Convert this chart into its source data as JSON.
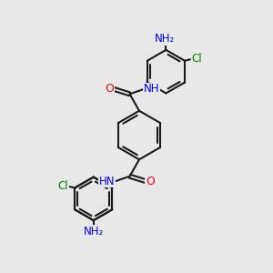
{
  "bg_color": "#e8e8e8",
  "bond_color": "#1a1a1a",
  "bond_width": 1.5,
  "atom_colors": {
    "C": "#1a1a1a",
    "N": "#0000ff",
    "O": "#ff0000",
    "Cl": "#008000",
    "H": "#808080"
  },
  "font_size": 8.0,
  "fig_width": 3.0,
  "fig_height": 3.0,
  "xlim": [
    0,
    10
  ],
  "ylim": [
    0,
    10
  ]
}
